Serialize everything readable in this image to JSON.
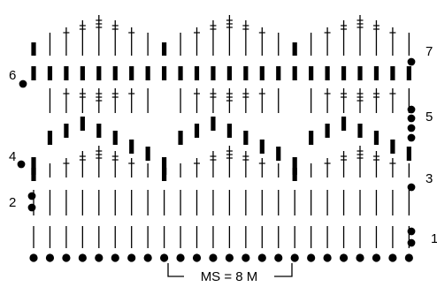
{
  "diagram": {
    "row_labels": {
      "r1": "1",
      "r2": "2",
      "r3": "3",
      "r4": "4",
      "r5": "5",
      "r6": "6",
      "r7": "7"
    },
    "repeat_label": "MS = 8 M",
    "columns": 24,
    "repeat_stitches": 8,
    "symbols": {
      "foundation": "chain-dot",
      "plain": "single-bar",
      "one_cross": "bar-with-one-crossbar",
      "two_cross": "bar-with-two-crossbars",
      "three_cross": "bar-with-three-crossbars",
      "thick": "thick-block"
    },
    "colors": {
      "ink": "#000000",
      "background": "#ffffff"
    }
  }
}
